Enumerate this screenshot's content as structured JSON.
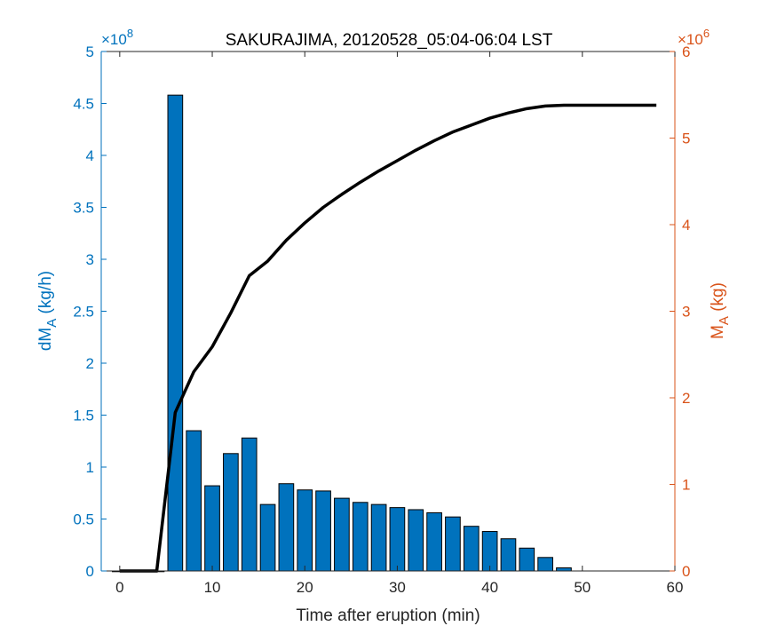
{
  "chart_data": {
    "type": "bar",
    "title": "SAKURAJIMA, 20120528_05:04-06:04 LST",
    "xlabel": "Time after eruption (min)",
    "xlim": [
      -2,
      60
    ],
    "xticks": [
      0,
      10,
      20,
      30,
      40,
      50,
      60
    ],
    "left_axis": {
      "label_main": "dM",
      "label_sub": "A",
      "label_unit": " (kg/h)",
      "multiplier_base": "×10",
      "multiplier_exp": "8",
      "ylim": [
        0,
        5
      ],
      "ticks": [
        0,
        0.5,
        1,
        1.5,
        2,
        2.5,
        3,
        3.5,
        4,
        4.5,
        5
      ],
      "tick_labels": [
        "0",
        "0.5",
        "1",
        "1.5",
        "2",
        "2.5",
        "3",
        "3.5",
        "4",
        "4.5",
        "5"
      ],
      "color": "#0072BD"
    },
    "right_axis": {
      "label_main": "M",
      "label_sub": "A",
      "label_unit": " (kg)",
      "multiplier_base": "×10",
      "multiplier_exp": "6",
      "ylim": [
        0,
        6
      ],
      "ticks": [
        0,
        1,
        2,
        3,
        4,
        5,
        6
      ],
      "tick_labels": [
        "0",
        "1",
        "2",
        "3",
        "4",
        "5",
        "6"
      ],
      "color": "#D95319"
    },
    "series": [
      {
        "kind": "bar",
        "axis": "left",
        "color": "#0072BD",
        "x": [
          0,
          2,
          4,
          6,
          8,
          10,
          12,
          14,
          16,
          18,
          20,
          22,
          24,
          26,
          28,
          30,
          32,
          34,
          36,
          38,
          40,
          42,
          44,
          46,
          48
        ],
        "values": [
          0,
          0,
          0,
          4.58,
          1.35,
          0.82,
          1.13,
          1.28,
          0.64,
          0.84,
          0.78,
          0.77,
          0.7,
          0.66,
          0.64,
          0.61,
          0.59,
          0.56,
          0.52,
          0.43,
          0.38,
          0.31,
          0.22,
          0.13,
          0.03
        ]
      },
      {
        "kind": "line",
        "axis": "right",
        "color": "#000000",
        "x": [
          0,
          4,
          6,
          8,
          10,
          12,
          14,
          16,
          18,
          20,
          22,
          24,
          26,
          28,
          30,
          32,
          34,
          36,
          38,
          40,
          42,
          44,
          46,
          48,
          50,
          52,
          54,
          56,
          58
        ],
        "values": [
          0,
          0,
          1.83,
          2.3,
          2.59,
          2.98,
          3.41,
          3.58,
          3.82,
          4.02,
          4.2,
          4.35,
          4.49,
          4.62,
          4.74,
          4.86,
          4.97,
          5.07,
          5.15,
          5.23,
          5.29,
          5.34,
          5.37,
          5.38,
          5.38,
          5.38,
          5.38,
          5.38,
          5.38
        ]
      }
    ],
    "grid": false,
    "legend": "none"
  }
}
